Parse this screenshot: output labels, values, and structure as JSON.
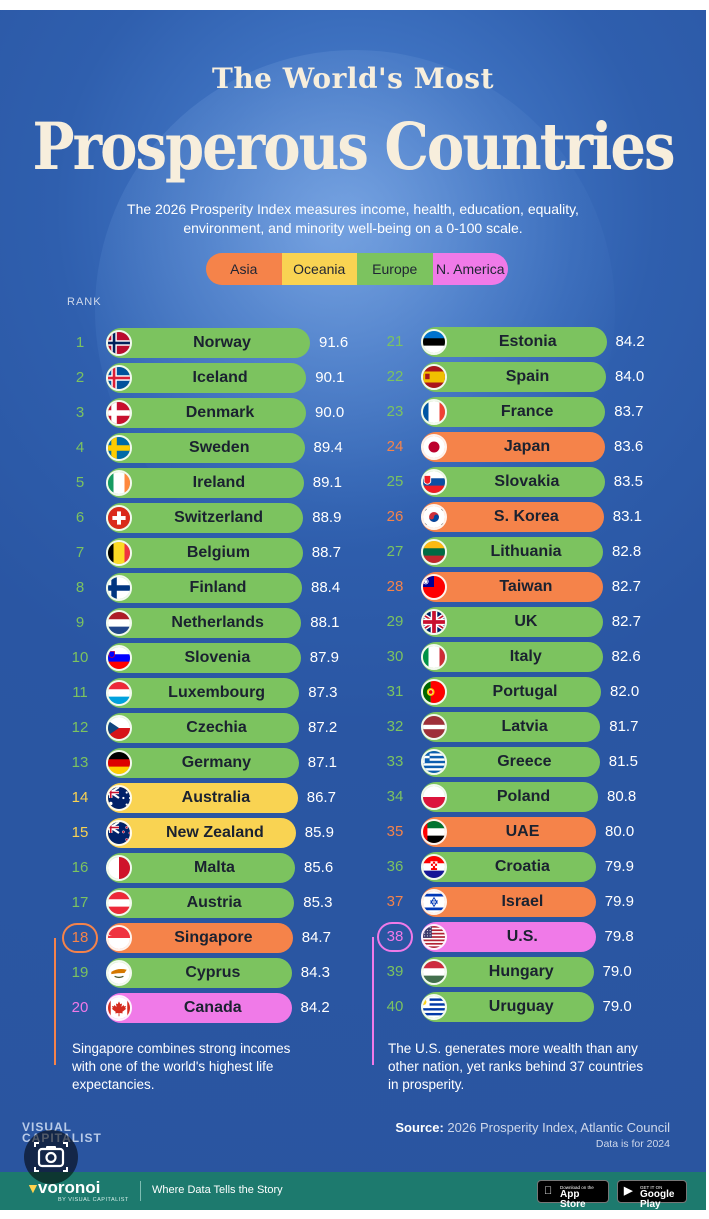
{
  "title_line1": "The World's Most",
  "title_line2": "Prosperous Countries",
  "subtitle": "The 2026 Prosperity Index measures income, health, education, equality, environment, and minority well-being on a 0-100 scale.",
  "legend": [
    {
      "label": "Asia",
      "color": "#f5834a"
    },
    {
      "label": "Oceania",
      "color": "#f9d352"
    },
    {
      "label": "Europe",
      "color": "#7cc35f"
    },
    {
      "label": "N. America",
      "color": "#f07ae8"
    }
  ],
  "region_colors": {
    "Asia": "#f5834a",
    "Oceania": "#f9d352",
    "Europe": "#7cc35f",
    "N. America": "#f07ae8"
  },
  "region_text_colors": {
    "Asia": "#f5834a",
    "Oceania": "#f9d352",
    "Europe": "#7cc35f",
    "N. America": "#f07ae8"
  },
  "rank_label": "RANK",
  "chart_data": {
    "type": "bar",
    "title": "The World's Most Prosperous Countries",
    "xlim": [
      78,
      92
    ],
    "countries": [
      {
        "rank": "1",
        "name": "Norway",
        "score": 91.6,
        "region": "Europe",
        "flag": "norway"
      },
      {
        "rank": "2",
        "name": "Iceland",
        "score": 90.1,
        "region": "Europe",
        "flag": "iceland"
      },
      {
        "rank": "3",
        "name": "Denmark",
        "score": 90.0,
        "region": "Europe",
        "flag": "denmark"
      },
      {
        "rank": "4",
        "name": "Sweden",
        "score": 89.4,
        "region": "Europe",
        "flag": "sweden"
      },
      {
        "rank": "5",
        "name": "Ireland",
        "score": 89.1,
        "region": "Europe",
        "flag": "ireland"
      },
      {
        "rank": "6",
        "name": "Switzerland",
        "score": 88.9,
        "region": "Europe",
        "flag": "switzerland"
      },
      {
        "rank": "7",
        "name": "Belgium",
        "score": 88.7,
        "region": "Europe",
        "flag": "belgium"
      },
      {
        "rank": "8",
        "name": "Finland",
        "score": 88.4,
        "region": "Europe",
        "flag": "finland"
      },
      {
        "rank": "9",
        "name": "Netherlands",
        "score": 88.1,
        "region": "Europe",
        "flag": "netherlands"
      },
      {
        "rank": "10",
        "name": "Slovenia",
        "score": 87.9,
        "region": "Europe",
        "flag": "slovenia"
      },
      {
        "rank": "11",
        "name": "Luxembourg",
        "score": 87.3,
        "region": "Europe",
        "flag": "luxembourg"
      },
      {
        "rank": "12",
        "name": "Czechia",
        "score": 87.2,
        "region": "Europe",
        "flag": "czechia"
      },
      {
        "rank": "13",
        "name": "Germany",
        "score": 87.1,
        "region": "Europe",
        "flag": "germany"
      },
      {
        "rank": "14",
        "name": "Australia",
        "score": 86.7,
        "region": "Oceania",
        "flag": "australia"
      },
      {
        "rank": "15",
        "name": "New Zealand",
        "score": 85.9,
        "region": "Oceania",
        "flag": "newzealand"
      },
      {
        "rank": "16",
        "name": "Malta",
        "score": 85.6,
        "region": "Europe",
        "flag": "malta"
      },
      {
        "rank": "17",
        "name": "Austria",
        "score": 85.3,
        "region": "Europe",
        "flag": "austria"
      },
      {
        "rank": "18",
        "name": "Singapore",
        "score": 84.7,
        "region": "Asia",
        "flag": "singapore",
        "highlight": true
      },
      {
        "rank": "19",
        "name": "Cyprus",
        "score": 84.3,
        "region": "Europe",
        "flag": "cyprus"
      },
      {
        "rank": "20",
        "name": "Canada",
        "score": 84.2,
        "region": "N. America",
        "flag": "canada"
      },
      {
        "rank": "21",
        "name": "Estonia",
        "score": 84.2,
        "region": "Europe",
        "flag": "estonia"
      },
      {
        "rank": "22",
        "name": "Spain",
        "score": 84.0,
        "region": "Europe",
        "flag": "spain"
      },
      {
        "rank": "23",
        "name": "France",
        "score": 83.7,
        "region": "Europe",
        "flag": "france"
      },
      {
        "rank": "24",
        "name": "Japan",
        "score": 83.6,
        "region": "Asia",
        "flag": "japan"
      },
      {
        "rank": "25",
        "name": "Slovakia",
        "score": 83.5,
        "region": "Europe",
        "flag": "slovakia"
      },
      {
        "rank": "26",
        "name": "S. Korea",
        "score": 83.1,
        "region": "Asia",
        "flag": "skorea"
      },
      {
        "rank": "27",
        "name": "Lithuania",
        "score": 82.8,
        "region": "Europe",
        "flag": "lithuania"
      },
      {
        "rank": "28",
        "name": "Taiwan",
        "score": 82.7,
        "region": "Asia",
        "flag": "taiwan"
      },
      {
        "rank": "29",
        "name": "UK",
        "score": 82.7,
        "region": "Europe",
        "flag": "uk"
      },
      {
        "rank": "30",
        "name": "Italy",
        "score": 82.6,
        "region": "Europe",
        "flag": "italy"
      },
      {
        "rank": "31",
        "name": "Portugal",
        "score": 82.0,
        "region": "Europe",
        "flag": "portugal"
      },
      {
        "rank": "32",
        "name": "Latvia",
        "score": 81.7,
        "region": "Europe",
        "flag": "latvia"
      },
      {
        "rank": "33",
        "name": "Greece",
        "score": 81.5,
        "region": "Europe",
        "flag": "greece"
      },
      {
        "rank": "34",
        "name": "Poland",
        "score": 80.8,
        "region": "Europe",
        "flag": "poland"
      },
      {
        "rank": "35",
        "name": "UAE",
        "score": 80.0,
        "region": "Asia",
        "flag": "uae"
      },
      {
        "rank": "36",
        "name": "Croatia",
        "score": 79.9,
        "region": "Europe",
        "flag": "croatia"
      },
      {
        "rank": "37",
        "name": "Israel",
        "score": 79.9,
        "region": "Asia",
        "flag": "israel"
      },
      {
        "rank": "38",
        "name": "U.S.",
        "score": 79.8,
        "region": "N. America",
        "flag": "us",
        "highlight": true
      },
      {
        "rank": "39",
        "name": "Hungary",
        "score": 79.0,
        "region": "Europe",
        "flag": "hungary"
      },
      {
        "rank": "40",
        "name": "Uruguay",
        "score": 79.0,
        "region": "Europe",
        "flag": "uruguay"
      }
    ]
  },
  "notes": {
    "left": "Singapore combines strong incomes with one of the world's highest life expectancies.",
    "right": "The U.S. generates more wealth than any other nation, yet ranks behind 37 countries in prosperity."
  },
  "source_label": "Source:",
  "source_text": "2026 Prosperity Index, Atlantic Council",
  "data_note": "Data is for 2024",
  "vc_logo_line1": "VISUAL",
  "vc_logo_line2": "CAPITALIST",
  "footer": {
    "brand": "voronoi",
    "brand_sub": "BY VISUAL CAPITALIST",
    "tagline": "Where Data Tells the Story",
    "app_store_small": "Download on the",
    "app_store": "App Store",
    "google_small": "GET IT ON",
    "google": "Google Play"
  },
  "icons": {
    "camera": "camera-search-icon",
    "apple": "apple-icon",
    "play": "google-play-icon"
  }
}
